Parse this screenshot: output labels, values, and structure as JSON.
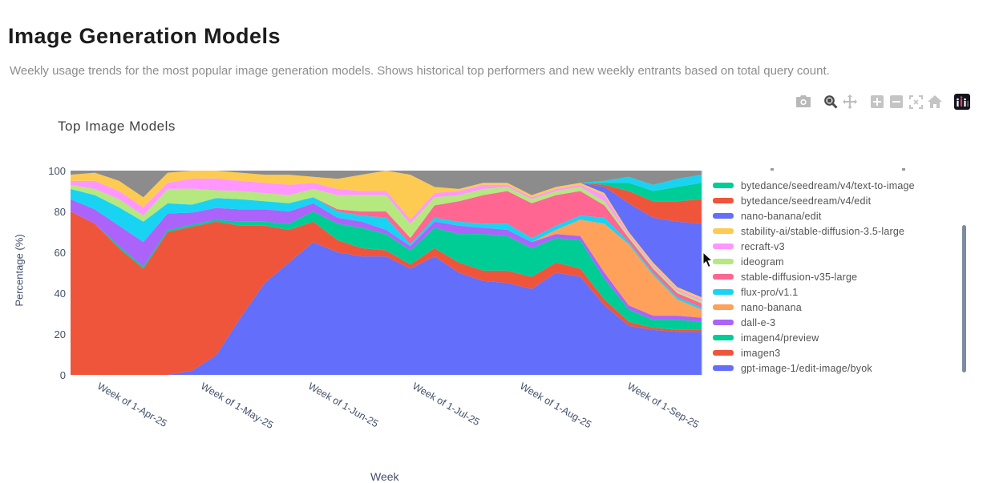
{
  "page": {
    "title": "Image Generation Models",
    "subtitle": "Weekly usage trends for the most popular image generation models. Shows historical top performers and new weekly entrants based on total query count."
  },
  "toolbar": {
    "buttons": [
      {
        "name": "download-camera"
      },
      {
        "name": "zoom",
        "active": true
      },
      {
        "name": "pan"
      },
      {
        "name": "zoom-in"
      },
      {
        "name": "zoom-out"
      },
      {
        "name": "autoscale"
      },
      {
        "name": "reset-home"
      },
      {
        "name": "plotly-logo"
      }
    ]
  },
  "chart": {
    "title": "Top Image Models",
    "xlabel": "Week",
    "ylabel": "Percentage (%)",
    "plot_bg": "#E5ECF6",
    "grid_color": "#ffffff"
  },
  "chart_data": {
    "type": "area",
    "stacked": true,
    "normalized_percent": true,
    "ylim": [
      0,
      100
    ],
    "yticks": [
      0,
      20,
      40,
      60,
      80,
      100
    ],
    "x": [
      "Mar-24-25",
      "Mar-31-25",
      "Apr-7-25",
      "Apr-14-25",
      "Apr-21-25",
      "Apr-28-25",
      "May-5-25",
      "May-12-25",
      "May-19-25",
      "May-26-25",
      "Jun-2-25",
      "Jun-9-25",
      "Jun-16-25",
      "Jun-23-25",
      "Jun-30-25",
      "Jul-7-25",
      "Jul-14-25",
      "Jul-21-25",
      "Jul-28-25",
      "Aug-4-25",
      "Aug-11-25",
      "Aug-18-25",
      "Aug-25-25",
      "Sep-1-25",
      "Sep-8-25",
      "Sep-15-25",
      "Sep-22-25"
    ],
    "xticks": [
      {
        "label": "Week of 1-Apr-25",
        "pos": 1.14
      },
      {
        "label": "Week of 1-May-25",
        "pos": 5.43
      },
      {
        "label": "Week of 1-Jun-25",
        "pos": 9.86
      },
      {
        "label": "Week of 1-Jul-25",
        "pos": 14.14
      },
      {
        "label": "Week of 1-Aug-25",
        "pos": 18.57
      },
      {
        "label": "Week of 1-Sep-25",
        "pos": 23.0
      }
    ],
    "series": [
      {
        "name": "gpt-image-1/edit-image/byok",
        "color": "#636EFA",
        "values": [
          0,
          0,
          0,
          0,
          0,
          2,
          10,
          28,
          45,
          55,
          65,
          60,
          58,
          58,
          52,
          58,
          50,
          46,
          45,
          42,
          50,
          48,
          34,
          24,
          22,
          21,
          21
        ]
      },
      {
        "name": "imagen3",
        "color": "#EF553B",
        "values": [
          80,
          74,
          62,
          52,
          70,
          72,
          68,
          45,
          28,
          16,
          10,
          6,
          4,
          3,
          2,
          4,
          5,
          5,
          6,
          6,
          5,
          4,
          3,
          2,
          1,
          1,
          1
        ]
      },
      {
        "name": "imagen4/preview",
        "color": "#00CC96",
        "values": [
          0,
          0,
          1,
          1,
          1,
          1,
          1,
          2,
          2,
          3,
          5,
          8,
          10,
          8,
          7,
          10,
          14,
          18,
          17,
          14,
          12,
          14,
          10,
          6,
          4,
          5,
          4
        ]
      },
      {
        "name": "dall-e-3",
        "color": "#AB63FA",
        "values": [
          6,
          7,
          10,
          12,
          8,
          6,
          6,
          6,
          6,
          6,
          4,
          3,
          3,
          2,
          2,
          3,
          4,
          3,
          3,
          3,
          2,
          2,
          3,
          2,
          2,
          2,
          2
        ]
      },
      {
        "name": "nano-banana",
        "color": "#FFA15A",
        "values": [
          0,
          0,
          0,
          0,
          0,
          0,
          0,
          0,
          0,
          0,
          0,
          0,
          0,
          0,
          0,
          0,
          0,
          0,
          0,
          0,
          2,
          8,
          24,
          30,
          20,
          8,
          4
        ]
      },
      {
        "name": "flux-pro/v1.1",
        "color": "#19D3F3",
        "values": [
          5,
          7,
          9,
          10,
          5,
          4,
          5,
          5,
          4,
          4,
          3,
          3,
          3,
          6,
          1,
          2,
          2,
          2,
          3,
          2,
          2,
          2,
          3,
          1,
          1,
          1,
          1
        ]
      },
      {
        "name": "stable-diffusion-v35-large",
        "color": "#FF6692",
        "values": [
          0,
          0,
          0,
          0,
          0,
          0,
          0,
          0,
          0,
          0,
          0,
          1,
          2,
          3,
          3,
          6,
          10,
          14,
          16,
          17,
          15,
          12,
          6,
          2,
          2,
          2,
          2
        ]
      },
      {
        "name": "ideogram",
        "color": "#B6E880",
        "values": [
          2,
          3,
          4,
          3,
          7,
          8,
          4,
          4,
          4,
          4,
          4,
          7,
          8,
          8,
          7,
          4,
          3,
          3,
          2,
          2,
          2,
          2,
          2,
          1,
          1,
          1,
          1
        ]
      },
      {
        "name": "recraft-v3",
        "color": "#FF97FF",
        "values": [
          2,
          4,
          4,
          4,
          3,
          5,
          6,
          5,
          5,
          5,
          3,
          3,
          2,
          2,
          2,
          2,
          2,
          2,
          1,
          1,
          1,
          1,
          3,
          1,
          1,
          1,
          1
        ]
      },
      {
        "name": "stability-ai/stable-diffusion-3.5-large",
        "color": "#FECB52",
        "values": [
          3,
          4,
          5,
          5,
          5,
          4,
          4,
          4,
          4,
          5,
          3,
          5,
          8,
          10,
          22,
          3,
          1,
          1,
          1,
          1,
          1,
          1,
          1,
          1,
          1,
          1,
          1
        ]
      },
      {
        "name": "nano-banana/edit",
        "color": "#636EFA",
        "values": [
          0,
          0,
          0,
          0,
          0,
          0,
          0,
          0,
          0,
          0,
          0,
          0,
          0,
          0,
          0,
          0,
          0,
          0,
          0,
          0,
          0,
          0,
          3,
          14,
          22,
          32,
          36
        ]
      },
      {
        "name": "bytedance/seedream/v4/edit",
        "color": "#EF553B",
        "values": [
          0,
          0,
          0,
          0,
          0,
          0,
          0,
          0,
          0,
          0,
          0,
          0,
          0,
          0,
          0,
          0,
          0,
          0,
          0,
          0,
          0,
          0,
          1,
          6,
          8,
          10,
          12
        ]
      },
      {
        "name": "bytedance/seedream/v4/text-to-image",
        "color": "#00CC96",
        "values": [
          0,
          0,
          0,
          0,
          0,
          0,
          0,
          0,
          0,
          0,
          0,
          0,
          0,
          0,
          0,
          0,
          0,
          0,
          0,
          0,
          0,
          0,
          1,
          4,
          5,
          7,
          8
        ]
      },
      {
        "name": "",
        "clipped_legend": true,
        "color": "#19D3F3",
        "values": [
          0,
          0,
          0,
          0,
          0,
          0,
          0,
          0,
          0,
          0,
          0,
          0,
          0,
          0,
          0,
          0,
          0,
          0,
          0,
          0,
          0,
          0,
          1,
          3,
          3,
          4,
          4
        ]
      }
    ],
    "remainder_series": {
      "name": "other",
      "color": "#8C8C8C"
    },
    "legend_position": "right",
    "legend_scrollable": true,
    "legend": [
      {
        "label": "bytedance/seedream/v4/text-to-image",
        "color": "#00CC96"
      },
      {
        "label": "bytedance/seedream/v4/edit",
        "color": "#EF553B"
      },
      {
        "label": "nano-banana/edit",
        "color": "#636EFA"
      },
      {
        "label": "stability-ai/stable-diffusion-3.5-large",
        "color": "#FECB52"
      },
      {
        "label": "recraft-v3",
        "color": "#FF97FF"
      },
      {
        "label": "ideogram",
        "color": "#B6E880"
      },
      {
        "label": "stable-diffusion-v35-large",
        "color": "#FF6692"
      },
      {
        "label": "flux-pro/v1.1",
        "color": "#19D3F3"
      },
      {
        "label": "nano-banana",
        "color": "#FFA15A"
      },
      {
        "label": "dall-e-3",
        "color": "#AB63FA"
      },
      {
        "label": "imagen4/preview",
        "color": "#00CC96"
      },
      {
        "label": "imagen3",
        "color": "#EF553B"
      },
      {
        "label": "gpt-image-1/edit-image/byok",
        "color": "#636EFA"
      }
    ]
  }
}
